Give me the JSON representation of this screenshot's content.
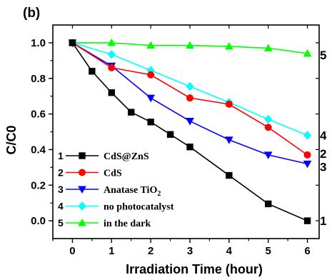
{
  "chart_data": {
    "type": "line",
    "panel_label": "(b)",
    "xlabel": "Irradiation Time (hour)",
    "ylabel": "C/C0",
    "xlim": [
      -0.5,
      6.3
    ],
    "ylim": [
      -0.1,
      1.1
    ],
    "xticks": [
      0,
      1,
      2,
      3,
      4,
      5,
      6
    ],
    "yticks": [
      0.0,
      0.2,
      0.4,
      0.6,
      0.8,
      1.0
    ],
    "ytick_labels": [
      "0.0",
      "0.2",
      "0.4",
      "0.6",
      "0.8",
      "1.0"
    ],
    "legend_position": "bottom-left",
    "series": [
      {
        "id": "1",
        "legend_number": "1",
        "name": "CdS@ZnS",
        "color": "#000000",
        "marker": "square",
        "end_label": "1",
        "x": [
          0,
          0.5,
          1,
          1.5,
          2,
          2.5,
          3,
          4,
          5,
          6
        ],
        "y": [
          1.0,
          0.84,
          0.72,
          0.61,
          0.555,
          0.485,
          0.415,
          0.255,
          0.095,
          0.0
        ]
      },
      {
        "id": "2",
        "legend_number": "2",
        "name": "CdS",
        "color": "#ff0000",
        "marker": "circle",
        "end_label": "2",
        "x": [
          0,
          1,
          2,
          3,
          4,
          5,
          6
        ],
        "y": [
          1.0,
          0.86,
          0.82,
          0.69,
          0.655,
          0.525,
          0.37
        ]
      },
      {
        "id": "3",
        "legend_number": "3",
        "name": "Anatase TiO",
        "name_subscript": "2",
        "color": "#0000ff",
        "marker": "triangle-down",
        "end_label": "3",
        "x": [
          0,
          1,
          2,
          3,
          4,
          5,
          6
        ],
        "y": [
          1.0,
          0.87,
          0.69,
          0.56,
          0.455,
          0.37,
          0.32
        ]
      },
      {
        "id": "4",
        "legend_number": "4",
        "name": "no photocatalyst",
        "color": "#00ffff",
        "marker": "diamond",
        "end_label": "4",
        "x": [
          0,
          1,
          2,
          3,
          4,
          5,
          6
        ],
        "y": [
          1.0,
          0.935,
          0.845,
          0.755,
          0.665,
          0.57,
          0.48
        ]
      },
      {
        "id": "5",
        "legend_number": "5",
        "name": "in the dark",
        "color": "#00ff00",
        "marker": "triangle-up",
        "end_label": "5",
        "x": [
          0,
          1,
          2,
          3,
          4,
          5,
          6
        ],
        "y": [
          1.0,
          1.0,
          0.985,
          0.985,
          0.98,
          0.97,
          0.94
        ]
      }
    ]
  }
}
